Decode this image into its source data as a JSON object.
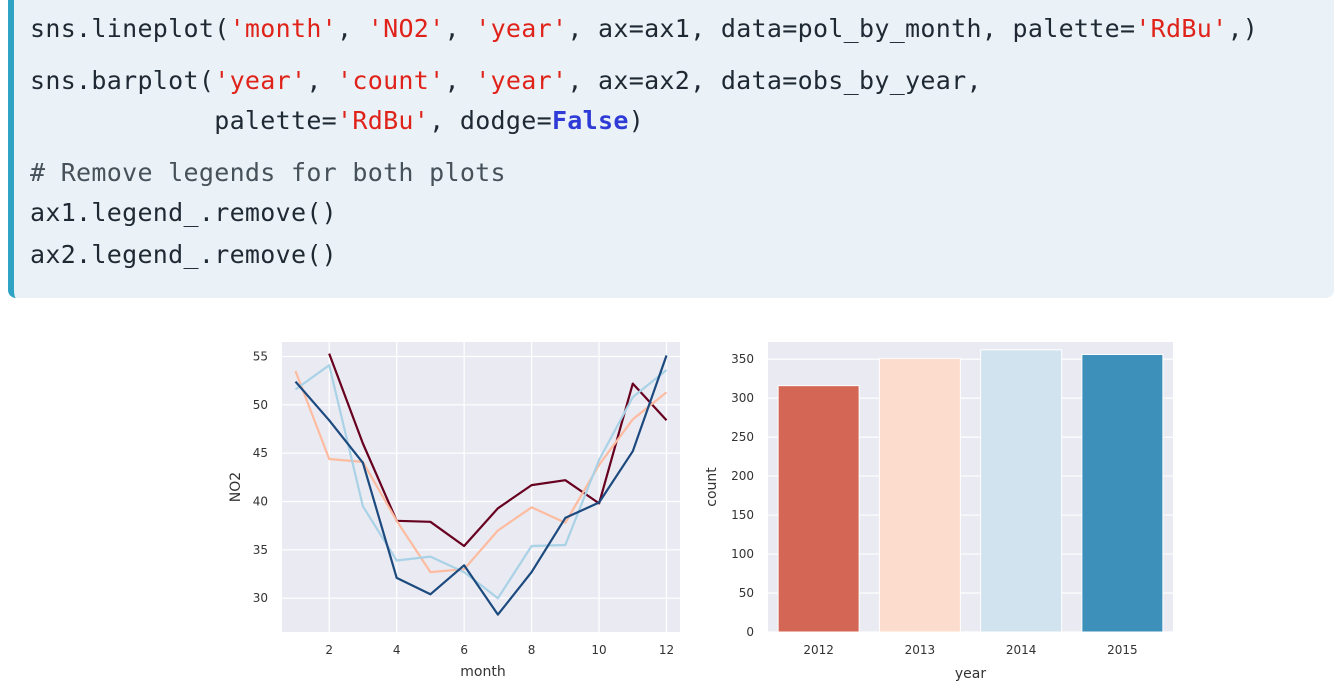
{
  "code": {
    "lines": [
      [
        {
          "t": "sns.lineplot(",
          "c": "plain"
        },
        {
          "t": "'month'",
          "c": "str"
        },
        {
          "t": ", ",
          "c": "plain"
        },
        {
          "t": "'NO2'",
          "c": "str"
        },
        {
          "t": ", ",
          "c": "plain"
        },
        {
          "t": "'year'",
          "c": "str"
        },
        {
          "t": ", ax=ax1, data=pol_by_month, palette=",
          "c": "plain"
        },
        {
          "t": "'RdBu'",
          "c": "str"
        },
        {
          "t": ",)",
          "c": "plain"
        }
      ],
      [
        {
          "t": "sns.barplot(",
          "c": "plain"
        },
        {
          "t": "'year'",
          "c": "str"
        },
        {
          "t": ", ",
          "c": "plain"
        },
        {
          "t": "'count'",
          "c": "str"
        },
        {
          "t": ", ",
          "c": "plain"
        },
        {
          "t": "'year'",
          "c": "str"
        },
        {
          "t": ", ax=ax2, data=obs_by_year,",
          "c": "plain"
        }
      ],
      [
        {
          "t": "            palette=",
          "c": "plain"
        },
        {
          "t": "'RdBu'",
          "c": "str"
        },
        {
          "t": ", dodge=",
          "c": "plain"
        },
        {
          "t": "False",
          "c": "kw"
        },
        {
          "t": ")",
          "c": "plain"
        }
      ],
      [
        {
          "t": "# Remove legends for both plots",
          "c": "cm"
        }
      ],
      [
        {
          "t": "ax1.legend_.remove()",
          "c": "plain"
        }
      ],
      [
        {
          "t": "ax2.legend_.remove()",
          "c": "plain"
        }
      ]
    ]
  },
  "chart_data": [
    {
      "type": "line",
      "xlabel": "month",
      "ylabel": "NO2",
      "xlim": [
        0.6,
        12.4
      ],
      "ylim": [
        26.5,
        56.5
      ],
      "xticks": [
        2,
        4,
        6,
        8,
        10,
        12
      ],
      "yticks": [
        30,
        35,
        40,
        45,
        50,
        55
      ],
      "grid": true,
      "legend": "none",
      "x": [
        1,
        2,
        3,
        4,
        5,
        6,
        7,
        8,
        9,
        10,
        11,
        12
      ],
      "series": [
        {
          "color": "#67001f",
          "values": [
            null,
            55.3,
            46.0,
            38.0,
            37.9,
            35.4,
            39.3,
            41.7,
            42.2,
            39.8,
            52.2,
            48.4
          ]
        },
        {
          "color": "#fdbba0",
          "values": [
            53.5,
            44.4,
            44.1,
            38.0,
            32.7,
            33.0,
            37.0,
            39.4,
            37.8,
            43.8,
            48.5,
            51.3
          ]
        },
        {
          "color": "#a9d2e6",
          "values": [
            51.6,
            54.1,
            39.5,
            33.9,
            34.3,
            32.7,
            30.0,
            35.4,
            35.5,
            44.3,
            50.8,
            53.6
          ]
        },
        {
          "color": "#1c4a7f",
          "values": [
            52.4,
            48.4,
            44.0,
            32.1,
            30.4,
            33.4,
            28.3,
            32.7,
            38.3,
            39.9,
            45.2,
            55.1
          ]
        }
      ]
    },
    {
      "type": "bar",
      "xlabel": "year",
      "ylabel": "count",
      "categories": [
        "2012",
        "2013",
        "2014",
        "2015"
      ],
      "values": [
        316,
        351,
        362,
        356
      ],
      "colors": [
        "#d46656",
        "#fcdccc",
        "#d0e3ee",
        "#3c90ba"
      ],
      "ylim": [
        0,
        372
      ],
      "yticks": [
        0,
        50,
        100,
        150,
        200,
        250,
        300,
        350
      ],
      "grid": true,
      "legend": "none"
    }
  ]
}
